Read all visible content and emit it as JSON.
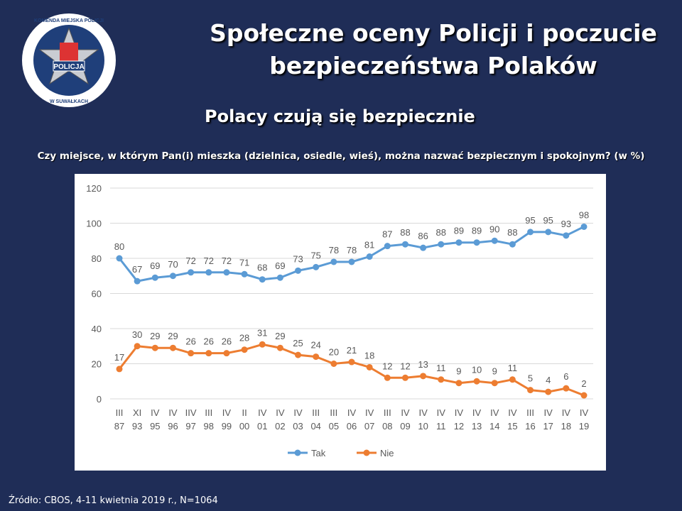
{
  "header": {
    "title_line1": "Społeczne oceny Policji i poczucie",
    "title_line2": "bezpieczeństwa Polaków",
    "subtitle": "Polacy czują się bezpiecznie",
    "question": "Czy miejsce, w którym Pan(i) mieszka (dzielnica, osiedle, wieś), można nazwać bezpiecznym i spokojnym? (w %)"
  },
  "logo": {
    "text_top": "KOMENDA MIEJSKA POLICJI",
    "text_center": "POLICJA",
    "text_bottom": "W SUWAŁKACH"
  },
  "source": "Źródło: CBOS, 4-11 kwietnia 2019 r., N=1064",
  "chart_data": {
    "type": "line",
    "categories": [
      [
        "III",
        "87"
      ],
      [
        "XI",
        "93"
      ],
      [
        "IV",
        "95"
      ],
      [
        "IV",
        "96"
      ],
      [
        "IIV",
        "97"
      ],
      [
        "III",
        "98"
      ],
      [
        "IV",
        "99"
      ],
      [
        "II",
        "00"
      ],
      [
        "IV",
        "01"
      ],
      [
        "IV",
        "02"
      ],
      [
        "IV",
        "03"
      ],
      [
        "III",
        "04"
      ],
      [
        "III",
        "05"
      ],
      [
        "IV",
        "06"
      ],
      [
        "IV",
        "07"
      ],
      [
        "III",
        "08"
      ],
      [
        "IV",
        "09"
      ],
      [
        "IV",
        "10"
      ],
      [
        "IV",
        "11"
      ],
      [
        "IV",
        "12"
      ],
      [
        "IV",
        "13"
      ],
      [
        "IV",
        "14"
      ],
      [
        "IV",
        "15"
      ],
      [
        "III",
        "16"
      ],
      [
        "IV",
        "17"
      ],
      [
        "IV",
        "18"
      ],
      [
        "IV",
        "19"
      ]
    ],
    "series": [
      {
        "name": "Tak",
        "color": "#5b9bd5",
        "values": [
          80,
          67,
          69,
          70,
          72,
          72,
          72,
          71,
          68,
          69,
          73,
          75,
          78,
          78,
          81,
          87,
          88,
          86,
          88,
          89,
          89,
          90,
          88,
          95,
          95,
          93,
          98
        ]
      },
      {
        "name": "Nie",
        "color": "#ed7d31",
        "values": [
          17,
          30,
          29,
          29,
          26,
          26,
          26,
          28,
          31,
          29,
          25,
          24,
          20,
          21,
          18,
          12,
          12,
          13,
          11,
          9,
          10,
          9,
          11,
          5,
          4,
          6,
          2
        ]
      }
    ],
    "ylim": [
      0,
      120
    ],
    "yticks": [
      0,
      20,
      40,
      60,
      80,
      100,
      120
    ],
    "grid": true,
    "legend": "bottom"
  }
}
